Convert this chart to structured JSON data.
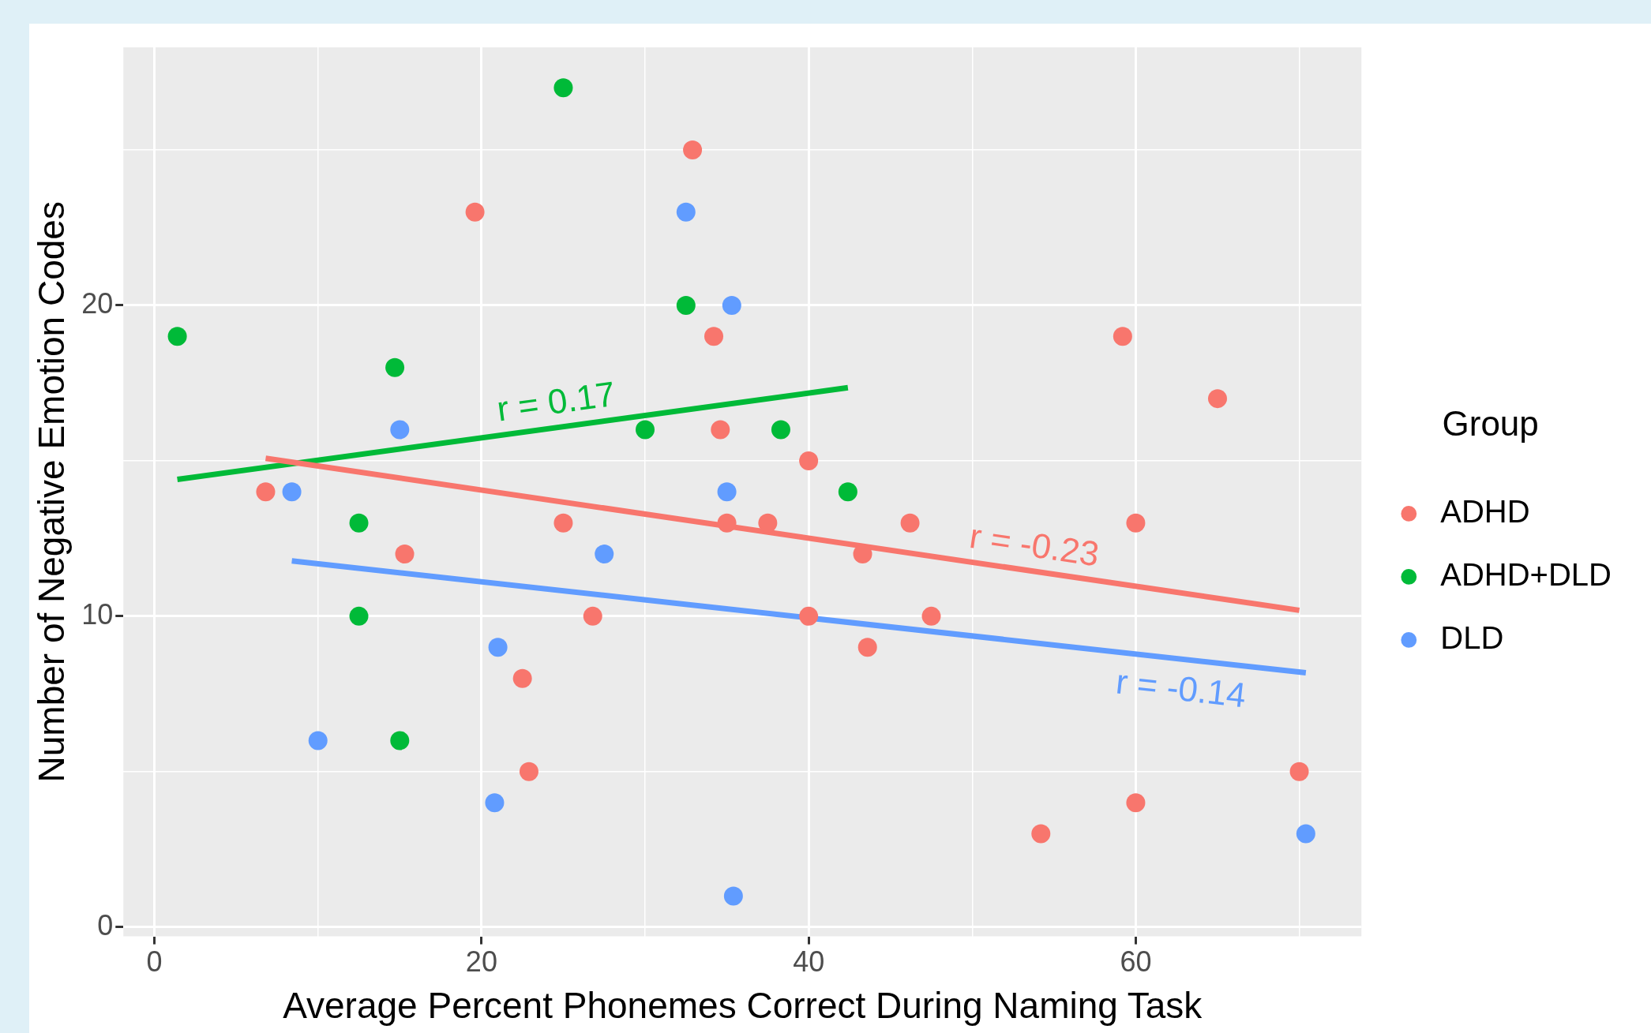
{
  "chart_data": {
    "type": "scatter",
    "xlabel": "Average Percent Phonemes Correct During Naming Task",
    "ylabel": "Number of Negative Emotion Codes",
    "legend_title": "Group",
    "legend": "right",
    "grid": true,
    "marker": "circle",
    "xlim": [
      -1.9,
      73.8
    ],
    "ylim": [
      -0.3,
      28.3
    ],
    "xticks": [
      0,
      {
        "value": 10,
        "label": null
      },
      20,
      {
        "value": 30,
        "label": null
      },
      40,
      {
        "value": 50,
        "label": null
      },
      60,
      {
        "value": 70,
        "label": null
      }
    ],
    "yticks": [
      0,
      {
        "value": 5,
        "label": null
      },
      10,
      {
        "value": 15,
        "label": null
      },
      20,
      {
        "value": 25,
        "label": null
      }
    ],
    "series": [
      {
        "name": "ADHD",
        "color": "#f8766d",
        "x": [
          6.8,
          15.3,
          19.6,
          25.0,
          26.8,
          22.5,
          22.9,
          32.9,
          34.2,
          34.6,
          35.0,
          37.5,
          40.0,
          40.0,
          43.3,
          43.6,
          46.2,
          47.5,
          54.2,
          59.2,
          60.0,
          60.0,
          65.0,
          70.0
        ],
        "values": [
          14,
          12,
          23,
          13,
          10,
          8,
          5,
          25,
          19,
          16,
          13,
          13,
          15,
          10,
          12,
          9,
          13,
          10,
          3,
          19,
          13,
          4,
          17,
          5
        ]
      },
      {
        "name": "ADHD+DLD",
        "color": "#00ba38",
        "x": [
          1.4,
          14.7,
          12.5,
          12.5,
          15.0,
          25.0,
          32.5,
          30.0,
          38.3,
          42.4
        ],
        "values": [
          19,
          18,
          13,
          10,
          6,
          27,
          20,
          16,
          16,
          14
        ]
      },
      {
        "name": "DLD",
        "color": "#619cff",
        "x": [
          8.4,
          15.0,
          10.0,
          21.0,
          20.8,
          27.5,
          32.5,
          35.3,
          35.0,
          35.4,
          70.4
        ],
        "values": [
          14,
          16,
          6,
          9,
          4,
          12,
          23,
          20,
          14,
          1,
          3
        ]
      },
      {
        "type": "line",
        "color": "#f8766d",
        "marker": "none",
        "x": [
          6.8,
          70.0
        ],
        "values": [
          15.08,
          10.19
        ]
      },
      {
        "type": "line",
        "color": "#00ba38",
        "marker": "none",
        "x": [
          1.4,
          42.4
        ],
        "values": [
          14.4,
          17.35
        ]
      },
      {
        "type": "line",
        "color": "#619cff",
        "marker": "none",
        "x": [
          8.4,
          70.4
        ],
        "values": [
          11.78,
          8.18
        ]
      }
    ],
    "annotations": [
      "r = 0.17",
      "r = -0.23",
      "r = -0.14"
    ]
  }
}
